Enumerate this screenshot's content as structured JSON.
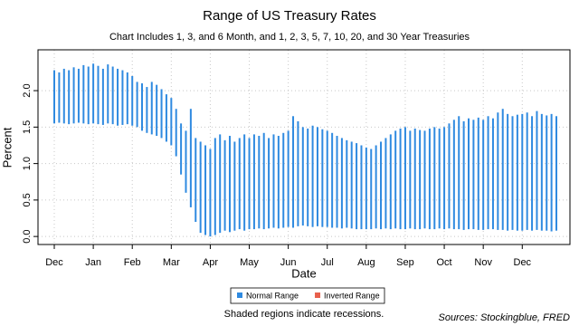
{
  "chart_data": {
    "type": "range_bar",
    "title": "Range of US Treasury Rates",
    "subtitle": "Chart Includes 1, 3, and 6 Month, and 1, 2, 3, 5, 7, 10, 20, and 30 Year Treasuries",
    "x_label": "Date",
    "y_label": "Percent",
    "note": "Shaded regions indicate recessions.",
    "source": "Sources: Stockingblue, FRED",
    "categories": [
      "Dec",
      null,
      null,
      null,
      null,
      null,
      null,
      null,
      "Jan",
      null,
      null,
      null,
      null,
      null,
      null,
      null,
      "Feb",
      null,
      null,
      null,
      null,
      null,
      null,
      null,
      "Mar",
      null,
      null,
      null,
      null,
      null,
      null,
      null,
      "Apr",
      null,
      null,
      null,
      null,
      null,
      null,
      null,
      "May",
      null,
      null,
      null,
      null,
      null,
      null,
      null,
      "Jun",
      null,
      null,
      null,
      null,
      null,
      null,
      null,
      "Jul",
      null,
      null,
      null,
      null,
      null,
      null,
      null,
      "Aug",
      null,
      null,
      null,
      null,
      null,
      null,
      null,
      "Sep",
      null,
      null,
      null,
      null,
      null,
      null,
      null,
      "Oct",
      null,
      null,
      null,
      null,
      null,
      null,
      null,
      "Nov",
      null,
      null,
      null,
      null,
      null,
      null,
      null,
      "Dec",
      null,
      null,
      null,
      null,
      null,
      null,
      null
    ],
    "series": [
      {
        "name": "Normal Range",
        "color": "#2f8ae0",
        "low": [
          1.55,
          1.56,
          1.55,
          1.54,
          1.55,
          1.56,
          1.55,
          1.54,
          1.55,
          1.54,
          1.53,
          1.55,
          1.54,
          1.52,
          1.53,
          1.54,
          1.52,
          1.5,
          1.45,
          1.42,
          1.4,
          1.38,
          1.35,
          1.3,
          1.25,
          1.1,
          0.85,
          0.6,
          0.4,
          0.2,
          0.05,
          0.02,
          0.0,
          0.02,
          0.05,
          0.08,
          0.06,
          0.08,
          0.1,
          0.08,
          0.1,
          0.1,
          0.11,
          0.1,
          0.11,
          0.12,
          0.11,
          0.12,
          0.13,
          0.12,
          0.14,
          0.15,
          0.14,
          0.13,
          0.14,
          0.13,
          0.13,
          0.12,
          0.12,
          0.11,
          0.12,
          0.11,
          0.1,
          0.1,
          0.1,
          0.1,
          0.11,
          0.1,
          0.11,
          0.1,
          0.11,
          0.1,
          0.1,
          0.11,
          0.1,
          0.1,
          0.11,
          0.1,
          0.1,
          0.11,
          0.1,
          0.11,
          0.1,
          0.1,
          0.09,
          0.1,
          0.1,
          0.09,
          0.09,
          0.1,
          0.1,
          0.09,
          0.09,
          0.08,
          0.09,
          0.08,
          0.08,
          0.09,
          0.08,
          0.09,
          0.08,
          0.08,
          0.07,
          0.08
        ],
        "high": [
          2.28,
          2.25,
          2.3,
          2.28,
          2.32,
          2.3,
          2.35,
          2.33,
          2.37,
          2.34,
          2.3,
          2.36,
          2.33,
          2.3,
          2.28,
          2.25,
          2.2,
          2.12,
          2.1,
          2.05,
          2.12,
          2.08,
          2.02,
          1.95,
          1.9,
          1.75,
          1.55,
          1.45,
          1.75,
          1.35,
          1.3,
          1.25,
          1.2,
          1.35,
          1.4,
          1.32,
          1.38,
          1.3,
          1.35,
          1.4,
          1.35,
          1.4,
          1.38,
          1.42,
          1.35,
          1.4,
          1.38,
          1.42,
          1.45,
          1.65,
          1.58,
          1.5,
          1.48,
          1.52,
          1.5,
          1.47,
          1.45,
          1.42,
          1.38,
          1.35,
          1.32,
          1.3,
          1.28,
          1.25,
          1.22,
          1.2,
          1.25,
          1.3,
          1.35,
          1.4,
          1.45,
          1.48,
          1.5,
          1.45,
          1.48,
          1.46,
          1.45,
          1.48,
          1.5,
          1.48,
          1.5,
          1.55,
          1.6,
          1.65,
          1.58,
          1.62,
          1.6,
          1.63,
          1.6,
          1.65,
          1.62,
          1.7,
          1.75,
          1.68,
          1.65,
          1.67,
          1.68,
          1.7,
          1.65,
          1.72,
          1.68,
          1.66,
          1.68,
          1.65
        ]
      },
      {
        "name": "Inverted Range",
        "color": "#e8604c"
      }
    ],
    "ylim": [
      -0.11,
      2.56
    ],
    "yticks": [
      {
        "value": 0,
        "label": "0.0"
      },
      0.5,
      {
        "value": 1,
        "label": "1.0"
      },
      1.5,
      {
        "value": 2,
        "label": "2.0"
      }
    ],
    "grid": true
  }
}
